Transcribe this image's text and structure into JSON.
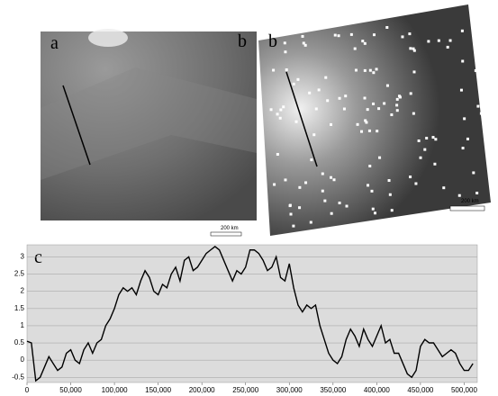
{
  "images": {
    "a": {
      "label": "a",
      "corner_label": "b",
      "scale_bar": "200 km"
    },
    "b": {
      "label": "b",
      "scale_bar": "200 km"
    }
  },
  "chart_data": {
    "type": "line",
    "panel_label": "c",
    "x": [
      0,
      5000,
      10000,
      15000,
      20000,
      25000,
      30000,
      35000,
      40000,
      45000,
      50000,
      55000,
      60000,
      65000,
      70000,
      75000,
      80000,
      85000,
      90000,
      95000,
      100000,
      105000,
      110000,
      115000,
      120000,
      125000,
      130000,
      135000,
      140000,
      145000,
      150000,
      155000,
      160000,
      165000,
      170000,
      175000,
      180000,
      185000,
      190000,
      195000,
      200000,
      205000,
      210000,
      215000,
      220000,
      225000,
      230000,
      235000,
      240000,
      245000,
      250000,
      255000,
      260000,
      265000,
      270000,
      275000,
      280000,
      285000,
      290000,
      295000,
      300000,
      305000,
      310000,
      315000,
      320000,
      325000,
      330000,
      335000,
      340000,
      345000,
      350000,
      355000,
      360000,
      365000,
      370000,
      375000,
      380000,
      385000,
      390000,
      395000,
      400000,
      405000,
      410000,
      415000,
      420000,
      425000,
      430000,
      435000,
      440000,
      445000,
      450000,
      455000,
      460000,
      465000,
      470000,
      475000,
      480000,
      485000,
      490000,
      495000,
      500000,
      505000,
      510000
    ],
    "series": [
      {
        "color": "#000000",
        "values": [
          0.55,
          0.5,
          -0.6,
          -0.5,
          -0.2,
          0.1,
          -0.1,
          -0.3,
          -0.2,
          0.2,
          0.3,
          0,
          -0.1,
          0.3,
          0.5,
          0.2,
          0.5,
          0.6,
          1.0,
          1.2,
          1.5,
          1.9,
          2.1,
          2.0,
          2.1,
          1.9,
          2.3,
          2.6,
          2.4,
          2.0,
          1.9,
          2.2,
          2.1,
          2.5,
          2.7,
          2.3,
          2.9,
          3.0,
          2.6,
          2.7,
          2.9,
          3.1,
          3.2,
          3.3,
          3.2,
          2.9,
          2.6,
          2.3,
          2.6,
          2.5,
          2.7,
          3.2,
          3.2,
          3.1,
          2.9,
          2.6,
          2.7,
          3.0,
          2.4,
          2.3,
          2.8,
          2.1,
          1.6,
          1.4,
          1.6,
          1.5,
          1.6,
          1.0,
          0.6,
          0.2,
          0.0,
          -0.1,
          0.1,
          0.6,
          0.9,
          0.7,
          0.4,
          0.9,
          0.6,
          0.4,
          0.7,
          1.0,
          0.5,
          0.6,
          0.2,
          0.2,
          -0.1,
          -0.4,
          -0.5,
          -0.3,
          0.4,
          0.6,
          0.5,
          0.5,
          0.3,
          0.1,
          0.2,
          0.3,
          0.2,
          -0.1,
          -0.3,
          -0.3,
          -0.1
        ]
      }
    ],
    "xlim": [
      0,
      515000
    ],
    "xticks": [
      0,
      {
        "value": 50000,
        "label": "50,000"
      },
      {
        "value": 100000,
        "label": "100,000"
      },
      {
        "value": 150000,
        "label": "150,000"
      },
      {
        "value": 200000,
        "label": "200,000"
      },
      {
        "value": 250000,
        "label": "250,000"
      },
      {
        "value": 300000,
        "label": "300,000"
      },
      {
        "value": 350000,
        "label": "350,000"
      },
      {
        "value": 400000,
        "label": "400,000"
      },
      {
        "value": 450000,
        "label": "450,000"
      },
      {
        "value": 500000,
        "label": "500,000"
      }
    ],
    "ylim": [
      -0.65,
      3.35
    ],
    "yticks": [
      -0.5,
      0,
      0.5,
      1,
      1.5,
      2,
      2.5,
      3
    ],
    "grid": true,
    "background": "#dcdcdc"
  }
}
